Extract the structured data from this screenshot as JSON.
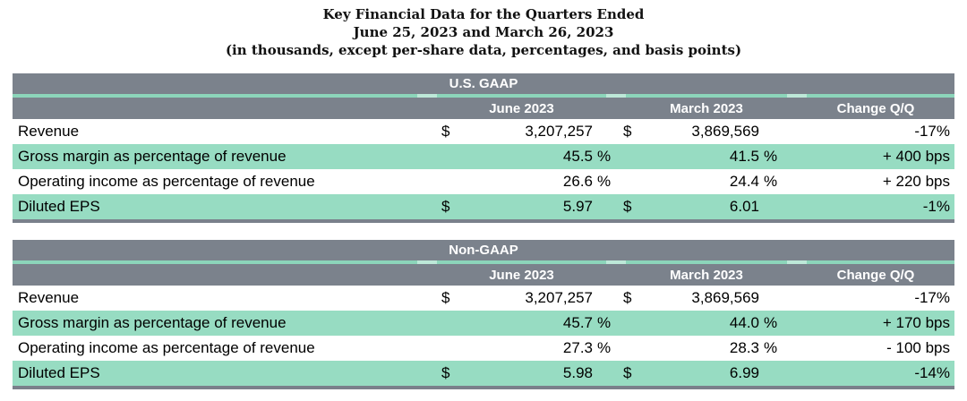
{
  "title": {
    "line1": "Key Financial Data for the Quarters Ended",
    "line2": "June 25, 2023 and March 26, 2023",
    "line3": "(in thousands, except per-share data, percentages, and basis points)"
  },
  "colors": {
    "header_gray": "#7B828C",
    "row_green": "#97DCC2",
    "teal_divider": "#8CD5BA",
    "table_bottom_border": "#7A808B",
    "header_text": "#FFFFFF",
    "body_text": "#000000"
  },
  "tables": [
    {
      "band": "U.S. GAAP",
      "columns": {
        "c1": "June 2023",
        "c2": "March 2023",
        "c3": "Change Q/Q"
      },
      "rows": [
        {
          "label": "Revenue",
          "d1": "$",
          "v1": "3,207,257",
          "p1": "",
          "d2": "$",
          "v2": "3,869,569",
          "p2": "",
          "change": "-17%"
        },
        {
          "label": "Gross margin as percentage of revenue",
          "d1": "",
          "v1": "45.5",
          "p1": "%",
          "d2": "",
          "v2": "41.5",
          "p2": "%",
          "change": "+ 400 bps"
        },
        {
          "label": "Operating income as percentage of revenue",
          "d1": "",
          "v1": "26.6",
          "p1": "%",
          "d2": "",
          "v2": "24.4",
          "p2": "%",
          "change": "+ 220 bps"
        },
        {
          "label": "Diluted EPS",
          "d1": "$",
          "v1": "5.97",
          "p1": "",
          "d2": "$",
          "v2": "6.01",
          "p2": "",
          "change": "-1%"
        }
      ]
    },
    {
      "band": "Non-GAAP",
      "columns": {
        "c1": "June 2023",
        "c2": "March 2023",
        "c3": "Change Q/Q"
      },
      "rows": [
        {
          "label": "Revenue",
          "d1": "$",
          "v1": "3,207,257",
          "p1": "",
          "d2": "$",
          "v2": "3,869,569",
          "p2": "",
          "change": "-17%"
        },
        {
          "label": "Gross margin as percentage of revenue",
          "d1": "",
          "v1": "45.7",
          "p1": "%",
          "d2": "",
          "v2": "44.0",
          "p2": "%",
          "change": "+ 170 bps"
        },
        {
          "label": "Operating income as percentage of revenue",
          "d1": "",
          "v1": "27.3",
          "p1": "%",
          "d2": "",
          "v2": "28.3",
          "p2": "%",
          "change": "- 100 bps"
        },
        {
          "label": "Diluted EPS",
          "d1": "$",
          "v1": "5.98",
          "p1": "",
          "d2": "$",
          "v2": "6.99",
          "p2": "",
          "change": "-14%"
        }
      ]
    }
  ]
}
